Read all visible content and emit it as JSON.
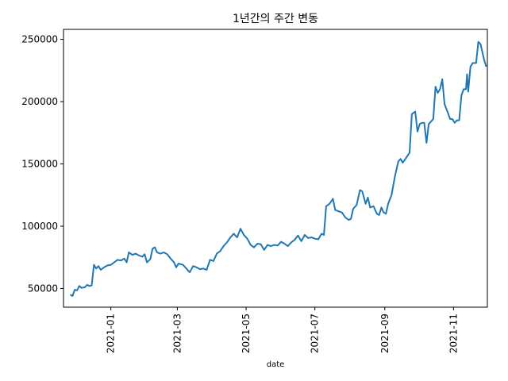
{
  "chart_data": {
    "type": "line",
    "title": "1년간의 주간 변동",
    "xlabel": "date",
    "ylabel": "",
    "xlim": [
      "2020-11-20",
      "2021-12-01"
    ],
    "ylim": [
      35000,
      258000
    ],
    "grid": false,
    "legend": "none",
    "x_ticks": [
      "2021-01",
      "2021-03",
      "2021-05",
      "2021-07",
      "2021-09",
      "2021-11"
    ],
    "y_ticks": [
      50000,
      100000,
      150000,
      200000,
      250000
    ],
    "series": [
      {
        "color": "#1f77b4",
        "points": [
          [
            "2020-11-26",
            45000
          ],
          [
            "2020-11-28",
            44000
          ],
          [
            "2020-11-30",
            49000
          ],
          [
            "2020-12-02",
            48500
          ],
          [
            "2020-12-04",
            52000
          ],
          [
            "2020-12-06",
            50500
          ],
          [
            "2020-12-09",
            51000
          ],
          [
            "2020-12-11",
            53000
          ],
          [
            "2020-12-13",
            52000
          ],
          [
            "2020-12-15",
            52500
          ],
          [
            "2020-12-17",
            69000
          ],
          [
            "2020-12-19",
            66000
          ],
          [
            "2020-12-21",
            68000
          ],
          [
            "2020-12-23",
            65000
          ],
          [
            "2020-12-26",
            67000
          ],
          [
            "2020-12-29",
            68500
          ],
          [
            "2021-01-01",
            69000
          ],
          [
            "2021-01-04",
            71000
          ],
          [
            "2021-01-07",
            73000
          ],
          [
            "2021-01-10",
            72500
          ],
          [
            "2021-01-13",
            74000
          ],
          [
            "2021-01-15",
            71000
          ],
          [
            "2021-01-17",
            79000
          ],
          [
            "2021-01-20",
            77000
          ],
          [
            "2021-01-23",
            78000
          ],
          [
            "2021-01-26",
            76500
          ],
          [
            "2021-01-29",
            75500
          ],
          [
            "2021-01-31",
            77500
          ],
          [
            "2021-02-02",
            71000
          ],
          [
            "2021-02-05",
            73500
          ],
          [
            "2021-02-07",
            82000
          ],
          [
            "2021-02-09",
            83000
          ],
          [
            "2021-02-11",
            79000
          ],
          [
            "2021-02-14",
            78000
          ],
          [
            "2021-02-17",
            79000
          ],
          [
            "2021-02-20",
            77500
          ],
          [
            "2021-02-23",
            74000
          ],
          [
            "2021-02-26",
            71000
          ],
          [
            "2021-02-28",
            67000
          ],
          [
            "2021-03-02",
            70000
          ],
          [
            "2021-03-06",
            69000
          ],
          [
            "2021-03-09",
            66000
          ],
          [
            "2021-03-12",
            63000
          ],
          [
            "2021-03-15",
            68000
          ],
          [
            "2021-03-18",
            67000
          ],
          [
            "2021-03-21",
            65500
          ],
          [
            "2021-03-24",
            66000
          ],
          [
            "2021-03-27",
            65000
          ],
          [
            "2021-03-30",
            73000
          ],
          [
            "2021-04-02",
            72000
          ],
          [
            "2021-04-05",
            78000
          ],
          [
            "2021-04-08",
            80000
          ],
          [
            "2021-04-11",
            84000
          ],
          [
            "2021-04-14",
            87000
          ],
          [
            "2021-04-17",
            91000
          ],
          [
            "2021-04-20",
            94000
          ],
          [
            "2021-04-23",
            91000
          ],
          [
            "2021-04-26",
            98000
          ],
          [
            "2021-04-29",
            93000
          ],
          [
            "2021-05-02",
            90000
          ],
          [
            "2021-05-05",
            85000
          ],
          [
            "2021-05-08",
            83000
          ],
          [
            "2021-05-11",
            86000
          ],
          [
            "2021-05-14",
            85500
          ],
          [
            "2021-05-17",
            81000
          ],
          [
            "2021-05-20",
            85000
          ],
          [
            "2021-05-23",
            84000
          ],
          [
            "2021-05-26",
            85000
          ],
          [
            "2021-05-29",
            84500
          ],
          [
            "2021-06-01",
            87500
          ],
          [
            "2021-06-04",
            86000
          ],
          [
            "2021-06-07",
            84000
          ],
          [
            "2021-06-10",
            87000
          ],
          [
            "2021-06-13",
            89000
          ],
          [
            "2021-06-16",
            92500
          ],
          [
            "2021-06-19",
            88000
          ],
          [
            "2021-06-22",
            93000
          ],
          [
            "2021-06-25",
            90500
          ],
          [
            "2021-06-28",
            91000
          ],
          [
            "2021-07-01",
            90000
          ],
          [
            "2021-07-04",
            89500
          ],
          [
            "2021-07-07",
            94000
          ],
          [
            "2021-07-09",
            93000
          ],
          [
            "2021-07-11",
            116000
          ],
          [
            "2021-07-14",
            118000
          ],
          [
            "2021-07-17",
            122000
          ],
          [
            "2021-07-19",
            113000
          ],
          [
            "2021-07-22",
            112000
          ],
          [
            "2021-07-25",
            111000
          ],
          [
            "2021-07-28",
            107000
          ],
          [
            "2021-07-31",
            105000
          ],
          [
            "2021-08-02",
            106000
          ],
          [
            "2021-08-04",
            114000
          ],
          [
            "2021-08-07",
            117000
          ],
          [
            "2021-08-10",
            129000
          ],
          [
            "2021-08-12",
            128000
          ],
          [
            "2021-08-15",
            118000
          ],
          [
            "2021-08-17",
            123000
          ],
          [
            "2021-08-19",
            115000
          ],
          [
            "2021-08-22",
            116000
          ],
          [
            "2021-08-25",
            110000
          ],
          [
            "2021-08-27",
            109000
          ],
          [
            "2021-08-29",
            115000
          ],
          [
            "2021-08-31",
            111000
          ],
          [
            "2021-09-02",
            110000
          ],
          [
            "2021-09-04",
            118000
          ],
          [
            "2021-09-07",
            125000
          ],
          [
            "2021-09-10",
            140000
          ],
          [
            "2021-09-13",
            152000
          ],
          [
            "2021-09-15",
            154000
          ],
          [
            "2021-09-17",
            151000
          ],
          [
            "2021-09-20",
            155000
          ],
          [
            "2021-09-23",
            159000
          ],
          [
            "2021-09-25",
            190000
          ],
          [
            "2021-09-28",
            192000
          ],
          [
            "2021-09-30",
            176000
          ],
          [
            "2021-10-02",
            182000
          ],
          [
            "2021-10-04",
            183000
          ],
          [
            "2021-10-06",
            183000
          ],
          [
            "2021-10-08",
            167000
          ],
          [
            "2021-10-10",
            182000
          ],
          [
            "2021-10-14",
            186000
          ],
          [
            "2021-10-16",
            212000
          ],
          [
            "2021-10-18",
            207000
          ],
          [
            "2021-10-20",
            210000
          ],
          [
            "2021-10-22",
            218000
          ],
          [
            "2021-10-24",
            198000
          ],
          [
            "2021-10-27",
            191000
          ],
          [
            "2021-10-29",
            186000
          ],
          [
            "2021-10-31",
            186000
          ],
          [
            "2021-11-02",
            183000
          ],
          [
            "2021-11-04",
            185000
          ],
          [
            "2021-11-06",
            185000
          ],
          [
            "2021-11-08",
            205000
          ],
          [
            "2021-11-10",
            210000
          ],
          [
            "2021-11-12",
            210000
          ],
          [
            "2021-11-13",
            222000
          ],
          [
            "2021-11-14",
            208000
          ],
          [
            "2021-11-16",
            228000
          ],
          [
            "2021-11-18",
            231000
          ],
          [
            "2021-11-21",
            231000
          ],
          [
            "2021-11-23",
            248000
          ],
          [
            "2021-11-25",
            246000
          ],
          [
            "2021-11-28",
            234000
          ],
          [
            "2021-11-30",
            228000
          ]
        ]
      }
    ]
  }
}
